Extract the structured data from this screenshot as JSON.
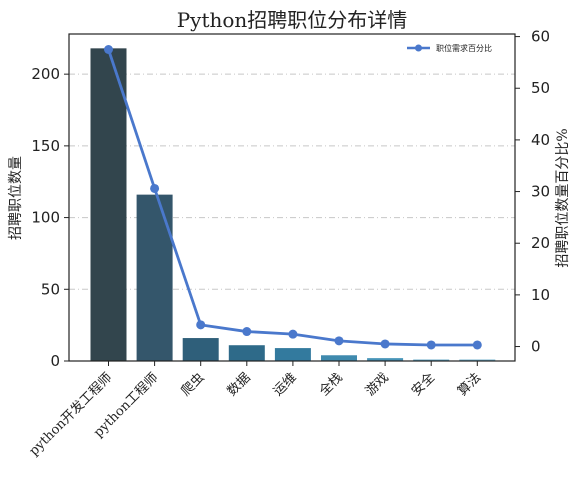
{
  "chart_data": {
    "type": "bar+line",
    "title": "Python招聘职位分布详情",
    "categories": [
      "python开发工程师",
      "python工程师",
      "爬虫",
      "数据",
      "运维",
      "全栈",
      "游戏",
      "安全",
      "算法"
    ],
    "bar_series": {
      "values": [
        218,
        116,
        16,
        11,
        9,
        4,
        2,
        1,
        1
      ],
      "colors": [
        "#32454d",
        "#34566b",
        "#2f5f7a",
        "#2e6a89",
        "#337a9e",
        "#3f8aae",
        "#4794b8",
        "#57a0c2",
        "#67aac8"
      ]
    },
    "line_series": {
      "name": "职位需求百分比",
      "values": [
        57.5,
        30.6,
        4.2,
        2.9,
        2.4,
        1.1,
        0.5,
        0.3,
        0.3
      ],
      "color": "#4a78cc"
    },
    "ylabel": "招聘职位数量",
    "y2label": "招聘职位数量百分比%",
    "ylim": [
      0,
      228
    ],
    "y2lim": [
      -2.8,
      60.5
    ],
    "yticks": [
      0,
      50,
      100,
      150,
      200
    ],
    "y2ticks": [
      0,
      10,
      20,
      30,
      40,
      50,
      60
    ],
    "grid": "horizontal dashed",
    "legend_position": "top-right"
  }
}
